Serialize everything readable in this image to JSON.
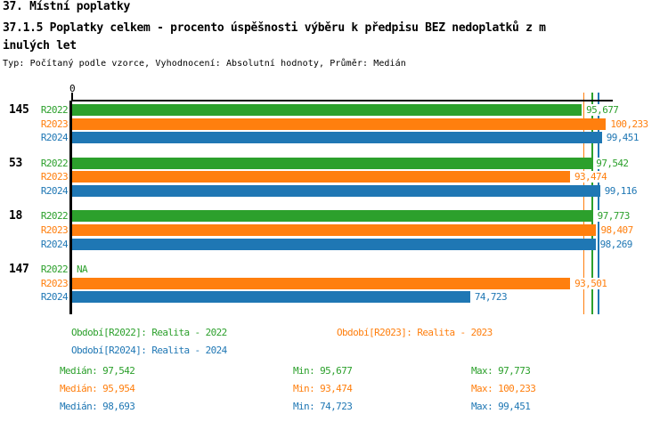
{
  "header": {
    "title_line1": "37. Místní poplatky",
    "title_line2": "37.1.5 Poplatky celkem - procento úspěšnosti výběru k předpisu BEZ nedoplatků z m",
    "title_line3": "inulých let",
    "subtitle": "Typ: Počítaný podle vzorce, Vyhodnocení: Absolutní hodnoty, Průměr: Medián"
  },
  "colors": {
    "R2022": "#2ca02c",
    "R2023": "#ff7f0e",
    "R2024": "#1f77b4",
    "axis": "#000000"
  },
  "chart_data": {
    "type": "bar",
    "orientation": "horizontal",
    "title": "37.1.5 Poplatky celkem - procento úspěšnosti výběru k předpisu BEZ nedoplatků z minulých let",
    "xlabel": "",
    "ylabel": "",
    "xlim": [
      0,
      101.5
    ],
    "x_axis_tick_labels": [
      "0"
    ],
    "grid": false,
    "series_names": [
      "R2022",
      "R2023",
      "R2024"
    ],
    "groups": [
      {
        "label": "145",
        "bars": [
          {
            "series": "R2022",
            "value": 95.677,
            "label": "95,677"
          },
          {
            "series": "R2023",
            "value": 100.233,
            "label": "100,233"
          },
          {
            "series": "R2024",
            "value": 99.451,
            "label": "99,451"
          }
        ]
      },
      {
        "label": "53",
        "bars": [
          {
            "series": "R2022",
            "value": 97.542,
            "label": "97,542"
          },
          {
            "series": "R2023",
            "value": 93.474,
            "label": "93,474"
          },
          {
            "series": "R2024",
            "value": 99.116,
            "label": "99,116"
          }
        ]
      },
      {
        "label": "18",
        "bars": [
          {
            "series": "R2022",
            "value": 97.773,
            "label": "97,773"
          },
          {
            "series": "R2023",
            "value": 98.407,
            "label": "98,407"
          },
          {
            "series": "R2024",
            "value": 98.269,
            "label": "98,269"
          }
        ]
      },
      {
        "label": "147",
        "bars": [
          {
            "series": "R2022",
            "value": null,
            "label": "NA"
          },
          {
            "series": "R2023",
            "value": 93.501,
            "label": "93,501"
          },
          {
            "series": "R2024",
            "value": 74.723,
            "label": "74,723"
          }
        ]
      }
    ],
    "median_lines": [
      {
        "series": "R2022",
        "value": 97.542
      },
      {
        "series": "R2023",
        "value": 95.954
      },
      {
        "series": "R2024",
        "value": 98.693
      }
    ]
  },
  "legend": {
    "items": [
      {
        "series": "R2022",
        "label": "Období[R2022]: Realita - 2022"
      },
      {
        "series": "R2023",
        "label": "Období[R2023]: Realita - 2023"
      },
      {
        "series": "R2024",
        "label": "Období[R2024]: Realita - 2024"
      }
    ]
  },
  "stats": {
    "rows": [
      {
        "series": "R2022",
        "median": "Medián: 97,542",
        "min": "Min: 95,677",
        "max": "Max: 97,773"
      },
      {
        "series": "R2023",
        "median": "Medián: 95,954",
        "min": "Min: 93,474",
        "max": "Max: 100,233"
      },
      {
        "series": "R2024",
        "median": "Medián: 98,693",
        "min": "Min: 74,723",
        "max": "Max: 99,451"
      }
    ]
  }
}
